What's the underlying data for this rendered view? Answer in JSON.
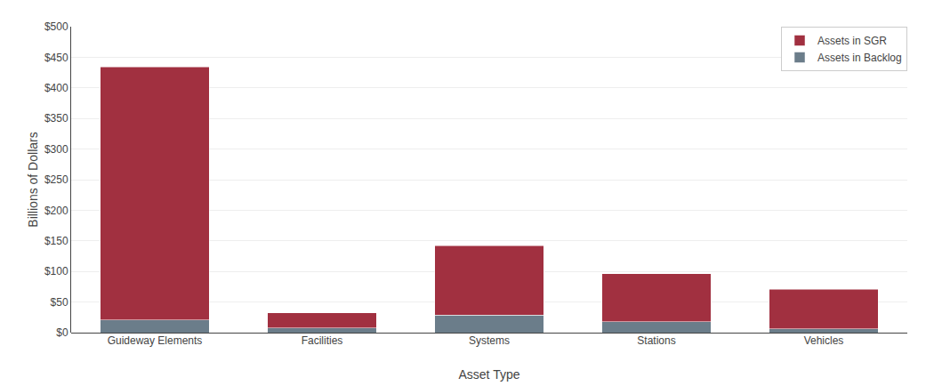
{
  "chart_data": {
    "type": "bar",
    "stacked": true,
    "categories": [
      "Guideway Elements",
      "Facilities",
      "Systems",
      "Stations",
      "Vehicles"
    ],
    "series": [
      {
        "name": "Assets in Backlog",
        "color": "#6B7D8A",
        "values": [
          21,
          8,
          29,
          18,
          6
        ]
      },
      {
        "name": "Assets in SGR",
        "color": "#A13040",
        "values": [
          413,
          24,
          113,
          78,
          65
        ]
      }
    ],
    "xlabel": "Asset Type",
    "ylabel": "Billions of Dollars",
    "ylim": [
      0,
      500
    ],
    "yticks": [
      {
        "value": 0,
        "label": "$0"
      },
      {
        "value": 50,
        "label": "$50"
      },
      {
        "value": 100,
        "label": "$100"
      },
      {
        "value": 150,
        "label": "$150"
      },
      {
        "value": 200,
        "label": "$200"
      },
      {
        "value": 250,
        "label": "$250"
      },
      {
        "value": 300,
        "label": "$300"
      },
      {
        "value": 350,
        "label": "$350"
      },
      {
        "value": 400,
        "label": "$400"
      },
      {
        "value": 450,
        "label": "$450"
      },
      {
        "value": 500,
        "label": "$500"
      }
    ],
    "grid": true,
    "legend": "upper right"
  }
}
